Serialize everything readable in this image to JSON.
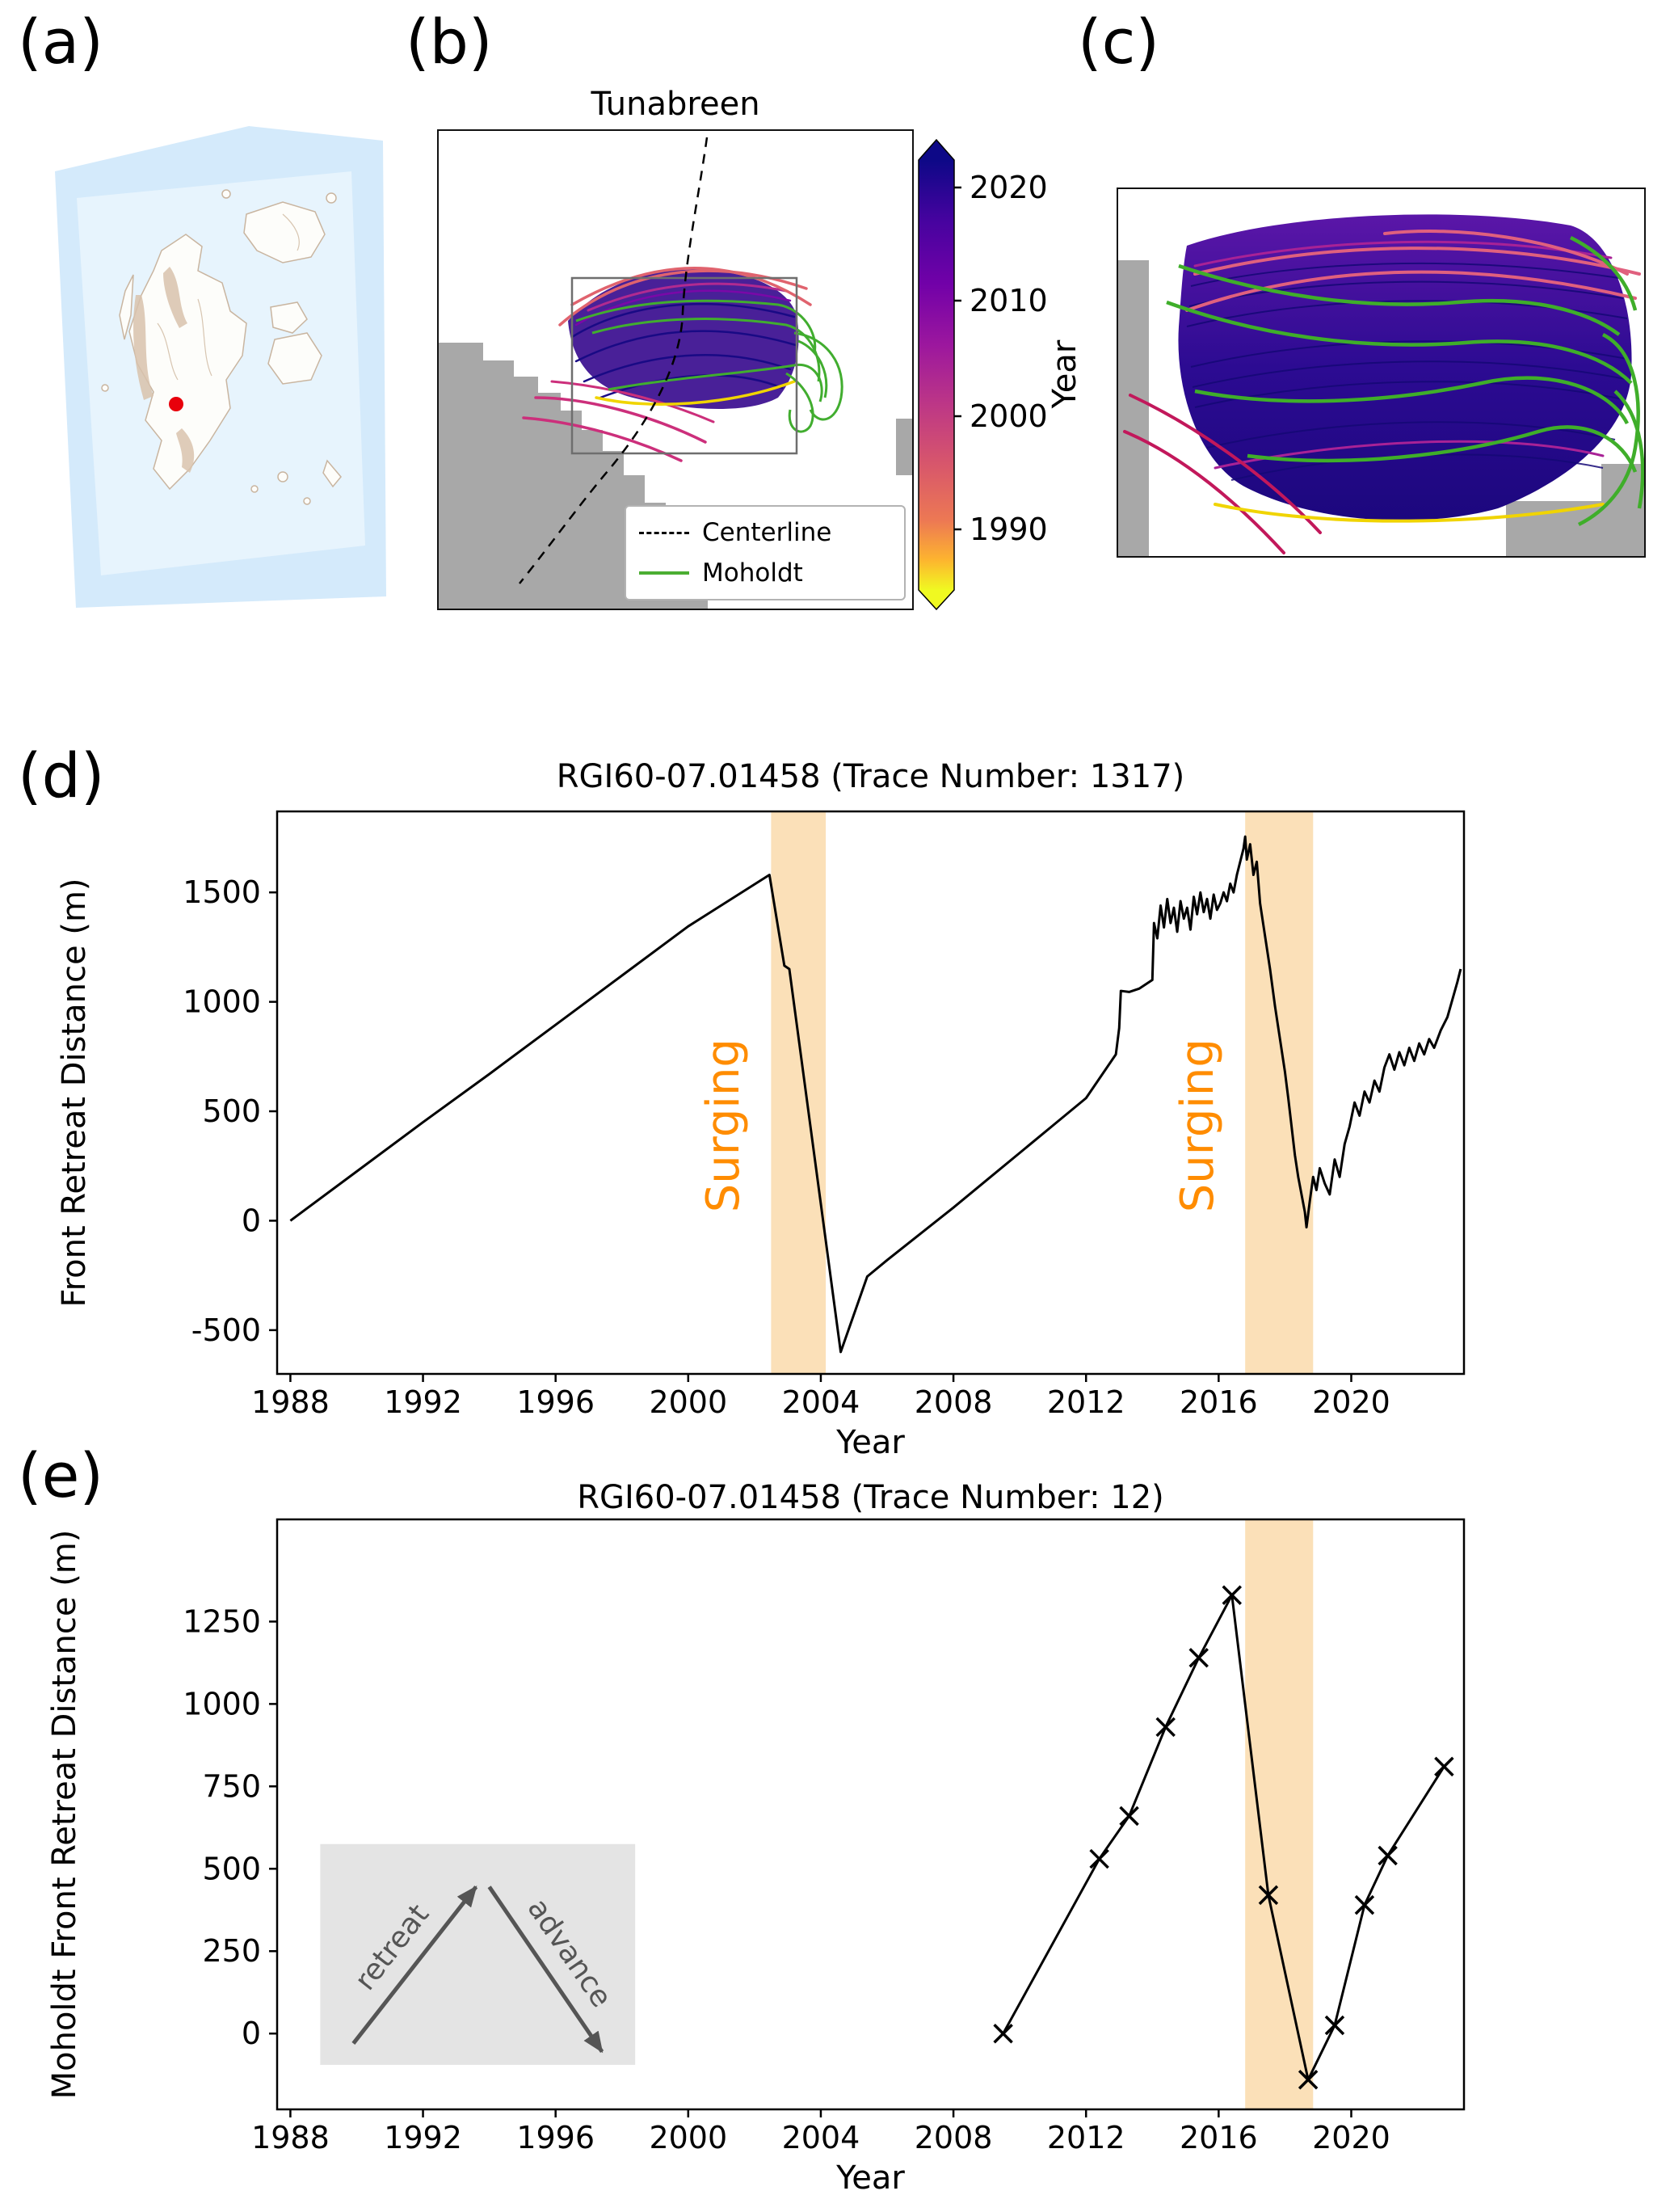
{
  "figure": {
    "panel_labels": {
      "a": "(a)",
      "b": "(b)",
      "c": "(c)",
      "d": "(d)",
      "e": "(e)"
    }
  },
  "panel_b": {
    "title": "Tunabreen",
    "legend": [
      {
        "label": "Centerline",
        "color": "#000000",
        "style": "dashed"
      },
      {
        "label": "Moholdt",
        "color": "#4bae32",
        "style": "solid"
      }
    ]
  },
  "colorbar": {
    "label": "Year",
    "ticks": [
      "2020",
      "2010",
      "2000",
      "1990"
    ],
    "top_color": "#0d0887",
    "bottom_color": "#f0f921"
  },
  "map": {
    "marker_color": "#e8000b"
  },
  "chart_data": [
    {
      "id": "d",
      "type": "line",
      "title": "RGI60-07.01458 (Trace Number: 1317)",
      "xlabel": "Year",
      "ylabel": "Front Retreat Distance (m)",
      "xlim": [
        1987.6,
        2023.4
      ],
      "ylim": [
        -700,
        1870
      ],
      "xticks": [
        1988,
        1992,
        1996,
        2000,
        2004,
        2008,
        2012,
        2016,
        2020
      ],
      "yticks": [
        -500,
        0,
        500,
        1000,
        1500
      ],
      "bands": [
        {
          "x0": 2002.5,
          "x1": 2004.15,
          "label": "Surging"
        },
        {
          "x0": 2016.8,
          "x1": 2018.85,
          "label": "Surging"
        }
      ],
      "band_color": "#fbe0b8",
      "band_label_color": "#ff8c00",
      "band_label_y": 435,
      "line_color": "#000000",
      "series": [
        {
          "name": "Front retreat distance",
          "x": [
            1988.0,
            1990,
            1992,
            1994,
            1996,
            1998,
            2000,
            2002.45,
            2002.9,
            2003.05,
            2004.6,
            2005.4,
            2006,
            2007,
            2008,
            2009,
            2010,
            2011,
            2012,
            2012.9,
            2013.0,
            2013.05,
            2013.3,
            2013.6,
            2014.0,
            2014.05,
            2014.15,
            2014.25,
            2014.35,
            2014.45,
            2014.55,
            2014.65,
            2014.75,
            2014.85,
            2014.95,
            2015.05,
            2015.15,
            2015.25,
            2015.35,
            2015.45,
            2015.55,
            2015.65,
            2015.75,
            2015.85,
            2015.95,
            2016.05,
            2016.15,
            2016.25,
            2016.35,
            2016.45,
            2016.55,
            2016.65,
            2016.75,
            2016.8,
            2016.85,
            2016.95,
            2017.05,
            2017.15,
            2017.25,
            2017.4,
            2017.55,
            2017.7,
            2017.85,
            2018.0,
            2018.1,
            2018.2,
            2018.3,
            2018.4,
            2018.5,
            2018.6,
            2018.65,
            2018.75,
            2018.85,
            2018.95,
            2019.05,
            2019.2,
            2019.35,
            2019.5,
            2019.65,
            2019.8,
            2019.95,
            2020.1,
            2020.25,
            2020.4,
            2020.55,
            2020.7,
            2020.85,
            2021.0,
            2021.15,
            2021.3,
            2021.45,
            2021.6,
            2021.75,
            2021.9,
            2022.05,
            2022.2,
            2022.35,
            2022.5,
            2022.7,
            2022.9,
            2023.05,
            2023.2,
            2023.3
          ],
          "y": [
            0,
            225,
            450,
            670,
            895,
            1120,
            1345,
            1580,
            1165,
            1150,
            -600,
            -255,
            -180,
            -60,
            60,
            185,
            310,
            435,
            560,
            760,
            880,
            1050,
            1045,
            1060,
            1100,
            1360,
            1290,
            1440,
            1340,
            1470,
            1360,
            1430,
            1320,
            1460,
            1380,
            1430,
            1330,
            1480,
            1400,
            1500,
            1410,
            1470,
            1380,
            1490,
            1420,
            1450,
            1500,
            1460,
            1540,
            1500,
            1580,
            1640,
            1700,
            1755,
            1650,
            1720,
            1580,
            1640,
            1450,
            1300,
            1150,
            980,
            830,
            680,
            560,
            430,
            300,
            200,
            120,
            40,
            -30,
            90,
            200,
            140,
            240,
            170,
            120,
            280,
            200,
            350,
            430,
            540,
            480,
            590,
            540,
            640,
            590,
            700,
            760,
            690,
            770,
            710,
            790,
            730,
            810,
            760,
            830,
            790,
            870,
            930,
            1010,
            1090,
            1150
          ]
        }
      ]
    },
    {
      "id": "e",
      "type": "line",
      "title": "RGI60-07.01458 (Trace Number: 12)",
      "xlabel": "Year",
      "ylabel": "Moholdt Front Retreat Distance (m)",
      "xlim": [
        1987.6,
        2023.4
      ],
      "ylim": [
        -230,
        1560
      ],
      "xticks": [
        1988,
        1992,
        1996,
        2000,
        2004,
        2008,
        2012,
        2016,
        2020
      ],
      "yticks": [
        0,
        250,
        500,
        750,
        1000,
        1250
      ],
      "bands": [
        {
          "x0": 2016.8,
          "x1": 2018.85
        }
      ],
      "band_color": "#fbe0b8",
      "band_label_color": "#ff8c00",
      "line_color": "#000000",
      "series": [
        {
          "name": "Moholdt front retreat distance",
          "marker": "x",
          "x": [
            2009.5,
            2012.4,
            2013.3,
            2014.4,
            2015.4,
            2016.4,
            2017.5,
            2018.7,
            2019.5,
            2020.4,
            2021.1,
            2022.8
          ],
          "y": [
            0,
            530,
            660,
            930,
            1140,
            1330,
            420,
            -140,
            25,
            390,
            540,
            810
          ]
        }
      ],
      "inset": {
        "labels": [
          "retreat",
          "advance"
        ]
      }
    }
  ]
}
